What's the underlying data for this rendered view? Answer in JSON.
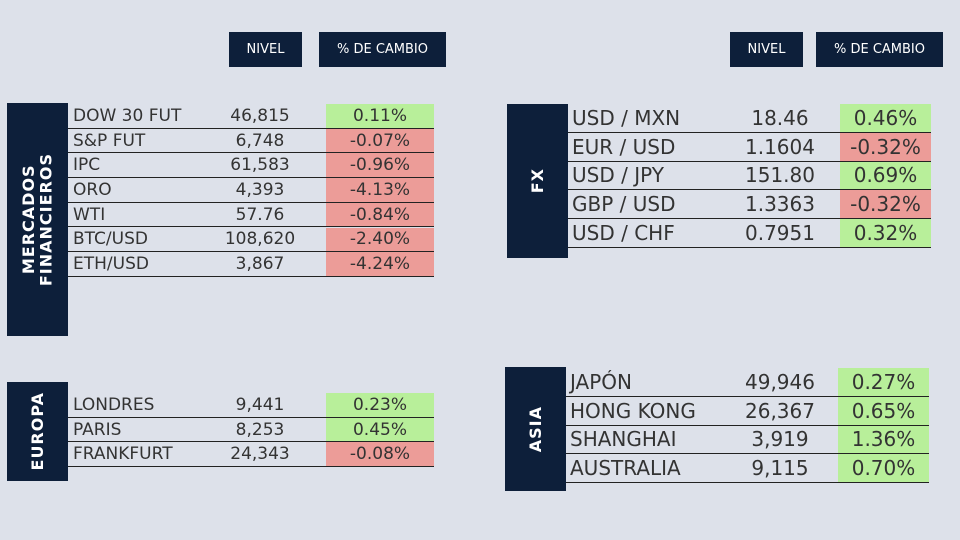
{
  "headers": [
    {
      "nivel": "NIVEL",
      "cambio": "% DE CAMBIO"
    },
    {
      "nivel": "NIVEL",
      "cambio": "% DE CAMBIO"
    }
  ],
  "sections": [
    {
      "label_lines": [
        "MERCADOS",
        "FINANCIEROS"
      ],
      "rows": [
        [
          "DOW 30 FUT",
          "46,815",
          "0.11%"
        ],
        [
          "S&P FUT",
          "6,748",
          "-0.07%"
        ],
        [
          "IPC",
          "61,583",
          "-0.96%"
        ],
        [
          "ORO",
          "4,393",
          "-4.13%"
        ],
        [
          "WTI",
          "57.76",
          "-0.84%"
        ],
        [
          "BTC/USD",
          "108,620",
          "-2.40%"
        ],
        [
          "ETH/USD",
          "3,867",
          "-4.24%"
        ]
      ]
    },
    {
      "label_lines": [
        "EUROPA"
      ],
      "rows": [
        [
          "LONDRES",
          "9,441",
          "0.23%"
        ],
        [
          "PARIS",
          "8,253",
          "0.45%"
        ],
        [
          "FRANKFURT",
          "24,343",
          "-0.08%"
        ]
      ]
    },
    {
      "label_lines": [
        "FX"
      ],
      "rows": [
        [
          "USD / MXN",
          "18.46",
          "0.46%"
        ],
        [
          "EUR / USD",
          "1.1604",
          "-0.32%"
        ],
        [
          "USD / JPY",
          "151.80",
          "0.69%"
        ],
        [
          "GBP / USD",
          "1.3363",
          "-0.32%"
        ],
        [
          "USD / CHF",
          "0.7951",
          "0.32%"
        ]
      ]
    },
    {
      "label_lines": [
        "ASIA"
      ],
      "rows": [
        [
          "JAPÓN",
          "49,946",
          "0.27%"
        ],
        [
          "HONG KONG",
          "26,367",
          "0.65%"
        ],
        [
          "SHANGHAI",
          "3,919",
          "1.36%"
        ],
        [
          "AUSTRALIA",
          "9,115",
          "0.70%"
        ]
      ]
    }
  ]
}
